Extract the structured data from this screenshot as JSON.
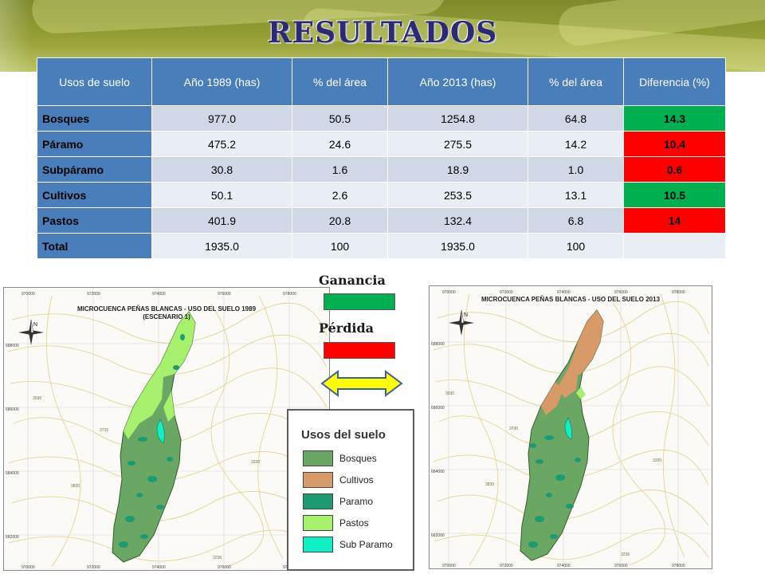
{
  "slide": {
    "title": "RESULTADOS"
  },
  "table": {
    "headers": [
      "Usos de suelo",
      "Año 1989 (has)",
      "% del área",
      "Año 2013 (has)",
      "% del área",
      "Diferencia (%)"
    ],
    "rows": [
      {
        "label": "Bosques",
        "y1989": "977.0",
        "pct1989": "50.5",
        "y2013": "1254.8",
        "pct2013": "64.8",
        "diff": "14.3",
        "status": "ganancia"
      },
      {
        "label": "Páramo",
        "y1989": "475.2",
        "pct1989": "24.6",
        "y2013": "275.5",
        "pct2013": "14.2",
        "diff": "10.4",
        "status": "perdida"
      },
      {
        "label": "Subpáramo",
        "y1989": "30.8",
        "pct1989": "1.6",
        "y2013": "18.9",
        "pct2013": "1.0",
        "diff": "0.6",
        "status": "perdida"
      },
      {
        "label": "Cultivos",
        "y1989": "50.1",
        "pct1989": "2.6",
        "y2013": "253.5",
        "pct2013": "13.1",
        "diff": "10.5",
        "status": "ganancia"
      },
      {
        "label": "Pastos",
        "y1989": "401.9",
        "pct1989": "20.8",
        "y2013": "132.4",
        "pct2013": "6.8",
        "diff": "14",
        "status": "perdida"
      },
      {
        "label": "Total",
        "y1989": "1935.0",
        "pct1989": "100",
        "y2013": "1935.0",
        "pct2013": "100",
        "diff": "",
        "status": "none"
      }
    ]
  },
  "key": {
    "gain_label": "Ganancia",
    "loss_label": "Pérdida",
    "gain_color": "#00b050",
    "loss_color": "#ff0000",
    "arrow_icon": "double-arrow-icon"
  },
  "maps": {
    "left": {
      "title_line1": "MICROCUENCA PEÑAS BLANCAS - USO DEL SUELO 1989",
      "title_line2": "(ESCENARIO 1)",
      "top_ticks": [
        "970000",
        "972000",
        "974000",
        "976000",
        "978000"
      ],
      "bottom_ticks": [
        "970000",
        "972000",
        "974000",
        "976000",
        "978000"
      ],
      "side_ticks": [
        "688000",
        "686000",
        "684000",
        "682000"
      ],
      "contour_labels": [
        "3030",
        "3730",
        "3830",
        "3330",
        "3236"
      ],
      "north_label": "N"
    },
    "right": {
      "title_line1": "MICROCUENCA PEÑAS BLANCAS - USO DEL SUELO 2013",
      "top_ticks": [
        "970000",
        "972000",
        "974000",
        "976000",
        "978000"
      ],
      "bottom_ticks": [
        "970000",
        "972000",
        "974000",
        "976000",
        "978000"
      ],
      "side_ticks": [
        "688000",
        "686000",
        "684000",
        "682000"
      ],
      "contour_labels": [
        "3030",
        "3730",
        "3830",
        "3330",
        "3236"
      ],
      "north_label": "N"
    }
  },
  "landuse_legend": {
    "title": "Usos del suelo",
    "items": [
      {
        "label": "Bosques",
        "color": "#6aa764"
      },
      {
        "label": "Cultivos",
        "color": "#d99a6a"
      },
      {
        "label": "Paramo",
        "color": "#1c9b72"
      },
      {
        "label": "Pastos",
        "color": "#a6f06e"
      },
      {
        "label": "Sub Paramo",
        "color": "#10f0c4"
      }
    ]
  }
}
